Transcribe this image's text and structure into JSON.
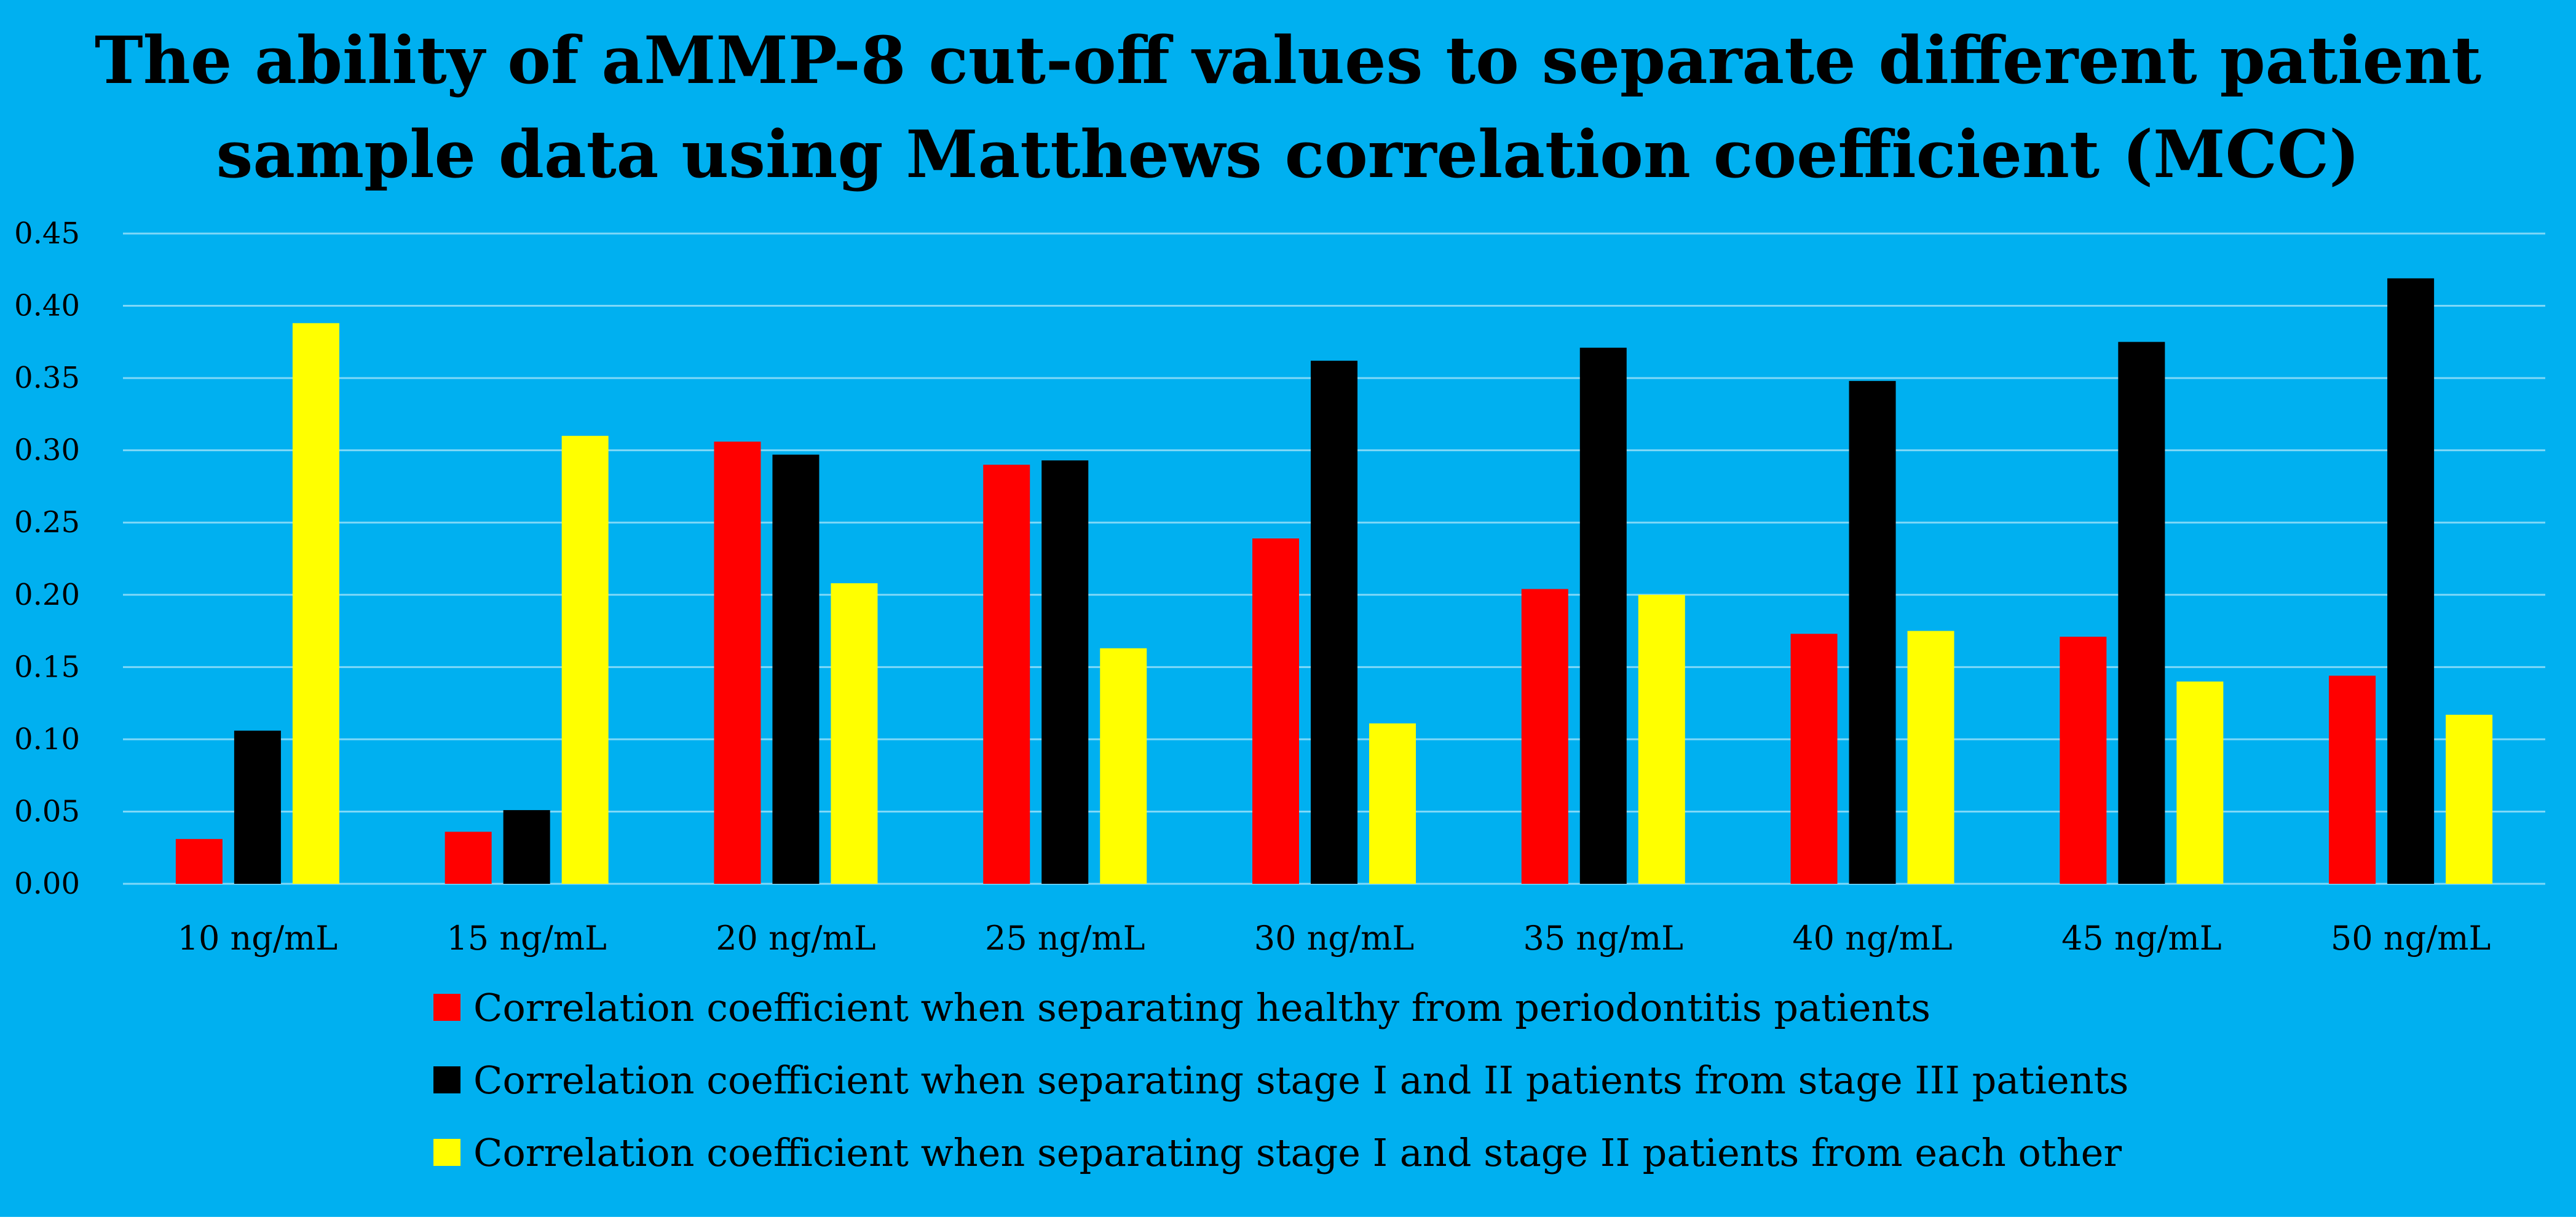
{
  "chart_data": {
    "type": "bar",
    "title": [
      "The ability of aMMP-8 cut-off values to separate different patient",
      "sample data using Matthews correlation coefficient (MCC)"
    ],
    "xlabel": "",
    "ylabel": "",
    "categories": [
      "10 ng/mL",
      "15 ng/mL",
      "20 ng/mL",
      "25 ng/mL",
      "30 ng/mL",
      "35 ng/mL",
      "40 ng/mL",
      "45 ng/mL",
      "50 ng/mL"
    ],
    "ylim": [
      0,
      0.45
    ],
    "yticks": [
      "0.00",
      "0.05",
      "0.10",
      "0.15",
      "0.20",
      "0.25",
      "0.30",
      "0.35",
      "0.40",
      "0.45"
    ],
    "grid": true,
    "legend_position": "bottom",
    "series": [
      {
        "name": "Correlation coefficient when separating healthy from periodontitis patients",
        "color": "#ff0000",
        "values": [
          0.031,
          0.036,
          0.306,
          0.29,
          0.239,
          0.204,
          0.173,
          0.171,
          0.144
        ]
      },
      {
        "name": "Correlation coefficient when separating stage I and II patients from stage III patients",
        "color": "#000000",
        "values": [
          0.106,
          0.051,
          0.297,
          0.293,
          0.362,
          0.371,
          0.348,
          0.375,
          0.419
        ]
      },
      {
        "name": "Correlation coefficient when separating stage I and stage II patients from each other",
        "color": "#ffff00",
        "values": [
          0.388,
          0.31,
          0.208,
          0.163,
          0.111,
          0.2,
          0.175,
          0.14,
          0.117
        ]
      }
    ]
  },
  "colors": {
    "background": "#00b0f0",
    "gridline": "#7fd8f8",
    "text": "#000000"
  }
}
